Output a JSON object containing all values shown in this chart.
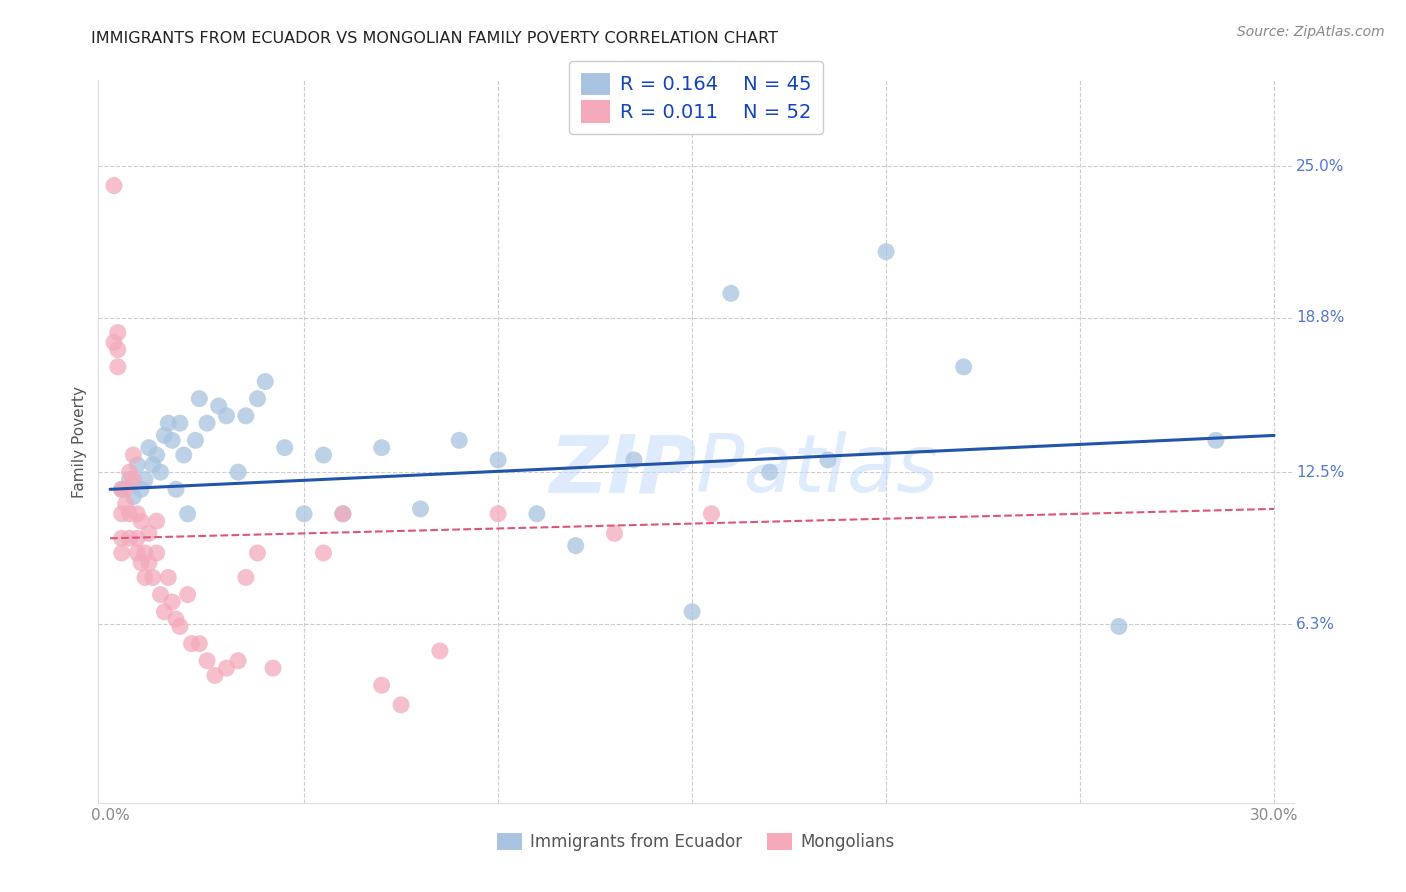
{
  "title": "IMMIGRANTS FROM ECUADOR VS MONGOLIAN FAMILY POVERTY CORRELATION CHART",
  "source": "Source: ZipAtlas.com",
  "ylabel": "Family Poverty",
  "watermark": "ZIPAtlas",
  "xlim": [
    0.0,
    0.3
  ],
  "ytick_values": [
    0.063,
    0.125,
    0.188,
    0.25
  ],
  "ytick_labels": [
    "6.3%",
    "12.5%",
    "18.8%",
    "25.0%"
  ],
  "legend_r1": "R = 0.164",
  "legend_n1": "N = 45",
  "legend_r2": "R = 0.011",
  "legend_n2": "N = 52",
  "color_blue": "#A8C4E0",
  "color_pink": "#F4AABB",
  "color_blue_line": "#2255AA",
  "color_pink_line": "#DD5577",
  "color_grid": "#CCCCCC",
  "color_ytick": "#5577CC",
  "blue_x": [
    0.003,
    0.005,
    0.006,
    0.007,
    0.008,
    0.009,
    0.01,
    0.011,
    0.012,
    0.013,
    0.014,
    0.015,
    0.016,
    0.017,
    0.018,
    0.019,
    0.02,
    0.022,
    0.023,
    0.025,
    0.028,
    0.03,
    0.033,
    0.035,
    0.038,
    0.04,
    0.045,
    0.05,
    0.055,
    0.06,
    0.07,
    0.08,
    0.09,
    0.1,
    0.11,
    0.12,
    0.135,
    0.15,
    0.16,
    0.17,
    0.185,
    0.2,
    0.22,
    0.26,
    0.285
  ],
  "blue_y": [
    0.118,
    0.122,
    0.115,
    0.128,
    0.118,
    0.122,
    0.135,
    0.128,
    0.132,
    0.125,
    0.14,
    0.145,
    0.138,
    0.118,
    0.145,
    0.132,
    0.108,
    0.138,
    0.155,
    0.145,
    0.152,
    0.148,
    0.125,
    0.148,
    0.155,
    0.162,
    0.135,
    0.108,
    0.132,
    0.108,
    0.135,
    0.11,
    0.138,
    0.13,
    0.108,
    0.095,
    0.13,
    0.068,
    0.198,
    0.125,
    0.13,
    0.215,
    0.168,
    0.062,
    0.138
  ],
  "pink_x": [
    0.001,
    0.001,
    0.002,
    0.002,
    0.002,
    0.003,
    0.003,
    0.003,
    0.003,
    0.004,
    0.004,
    0.005,
    0.005,
    0.005,
    0.006,
    0.006,
    0.007,
    0.007,
    0.007,
    0.008,
    0.008,
    0.009,
    0.009,
    0.01,
    0.01,
    0.011,
    0.012,
    0.012,
    0.013,
    0.014,
    0.015,
    0.016,
    0.017,
    0.018,
    0.02,
    0.021,
    0.023,
    0.025,
    0.027,
    0.03,
    0.033,
    0.035,
    0.038,
    0.042,
    0.055,
    0.06,
    0.07,
    0.075,
    0.085,
    0.1,
    0.13,
    0.155
  ],
  "pink_y": [
    0.242,
    0.178,
    0.182,
    0.175,
    0.168,
    0.118,
    0.108,
    0.098,
    0.092,
    0.118,
    0.112,
    0.125,
    0.108,
    0.098,
    0.132,
    0.122,
    0.108,
    0.098,
    0.092,
    0.105,
    0.088,
    0.092,
    0.082,
    0.1,
    0.088,
    0.082,
    0.105,
    0.092,
    0.075,
    0.068,
    0.082,
    0.072,
    0.065,
    0.062,
    0.075,
    0.055,
    0.055,
    0.048,
    0.042,
    0.045,
    0.048,
    0.082,
    0.092,
    0.045,
    0.092,
    0.108,
    0.038,
    0.03,
    0.052,
    0.108,
    0.1,
    0.108
  ],
  "blue_line_x0": 0.0,
  "blue_line_x1": 0.3,
  "blue_line_y0": 0.118,
  "blue_line_y1": 0.14,
  "pink_line_x0": 0.0,
  "pink_line_x1": 0.3,
  "pink_line_y0": 0.098,
  "pink_line_y1": 0.11
}
